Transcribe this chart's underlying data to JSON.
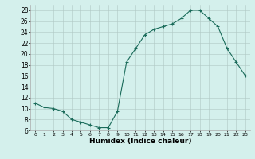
{
  "x": [
    0,
    1,
    2,
    3,
    4,
    5,
    6,
    7,
    8,
    9,
    10,
    11,
    12,
    13,
    14,
    15,
    16,
    17,
    18,
    19,
    20,
    21,
    22,
    23
  ],
  "y": [
    11,
    10.2,
    10,
    9.5,
    8,
    7.5,
    7,
    6.5,
    6.5,
    9.5,
    18.5,
    21,
    23.5,
    24.5,
    25,
    25.5,
    26.5,
    28,
    28,
    26.5,
    25,
    21,
    18.5,
    16
  ],
  "line_color": "#1a6b5a",
  "marker": "+",
  "marker_size": 3,
  "marker_linewidth": 0.8,
  "linewidth": 0.8,
  "background_color": "#d4f0ec",
  "grid_color": "#b0c8c4",
  "xlabel": "Humidex (Indice chaleur)",
  "xlabel_fontsize": 6.5,
  "ylim": [
    6,
    29
  ],
  "xlim": [
    -0.5,
    23.5
  ],
  "yticks": [
    6,
    8,
    10,
    12,
    14,
    16,
    18,
    20,
    22,
    24,
    26,
    28
  ],
  "xticks": [
    0,
    1,
    2,
    3,
    4,
    5,
    6,
    7,
    8,
    9,
    10,
    11,
    12,
    13,
    14,
    15,
    16,
    17,
    18,
    19,
    20,
    21,
    22,
    23
  ],
  "ytick_fontsize": 5.5,
  "xtick_fontsize": 4.5
}
